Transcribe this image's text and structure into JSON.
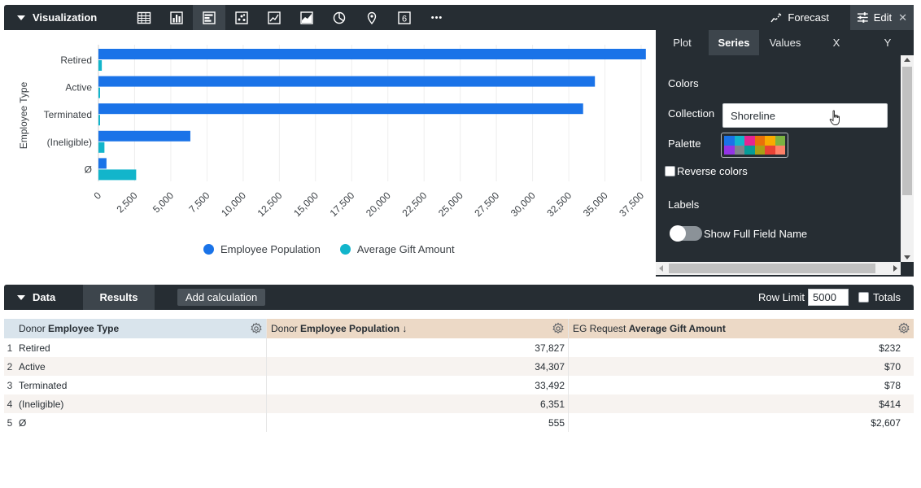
{
  "visualization": {
    "title": "Visualization",
    "icons": [
      {
        "name": "table-icon",
        "active": false
      },
      {
        "name": "column-chart-icon",
        "active": false
      },
      {
        "name": "bar-chart-icon",
        "active": true
      },
      {
        "name": "scatter-chart-icon",
        "active": false
      },
      {
        "name": "line-chart-icon",
        "active": false
      },
      {
        "name": "area-chart-icon",
        "active": false
      },
      {
        "name": "pie-chart-icon",
        "active": false
      },
      {
        "name": "map-pin-icon",
        "active": false
      },
      {
        "name": "single-value-icon",
        "active": false
      },
      {
        "name": "more-icon",
        "active": false
      }
    ],
    "single_value_glyph": "6",
    "more_glyph": "•••",
    "forecast_label": "Forecast",
    "edit_label": "Edit",
    "close_glyph": "✕"
  },
  "chart_data": {
    "type": "bar",
    "orientation": "horizontal",
    "categories": [
      "Retired",
      "Active",
      "Terminated",
      "(Ineligible)",
      "Ø"
    ],
    "series": [
      {
        "name": "Employee Population",
        "color": "#1a73e8",
        "values": [
          37827,
          34307,
          33492,
          6351,
          555
        ]
      },
      {
        "name": "Average Gift Amount",
        "color": "#12b5cb",
        "values": [
          232,
          70,
          78,
          414,
          2607
        ]
      }
    ],
    "ylabel": "Employee Type",
    "xlim": [
      0,
      37500
    ],
    "x_ticks": [
      "0",
      "2,500",
      "5,000",
      "7,500",
      "10,000",
      "12,500",
      "15,000",
      "17,500",
      "20,000",
      "22,500",
      "25,000",
      "27,500",
      "30,000",
      "32,500",
      "35,000",
      "37,500"
    ],
    "grid": true,
    "legend": "bottom"
  },
  "edit_panel": {
    "tabs": [
      {
        "label": "Plot",
        "active": false
      },
      {
        "label": "Series",
        "active": true
      },
      {
        "label": "Values",
        "active": false
      },
      {
        "label": "X",
        "active": false
      },
      {
        "label": "Y",
        "active": false
      }
    ],
    "colors_heading": "Colors",
    "collection_label": "Collection",
    "collection_value": "Shoreline",
    "palette_label": "Palette",
    "palette_colors": [
      "#1a73e8",
      "#12b5cb",
      "#e52592",
      "#e8710a",
      "#f9ab00",
      "#7cb342",
      "#9334e6",
      "#80868b",
      "#079c98",
      "#a8a116",
      "#ea4335",
      "#ff8168"
    ],
    "reverse_colors_label": "Reverse colors",
    "labels_heading": "Labels",
    "show_full_field_name_label": "Show Full Field Name"
  },
  "data_bar": {
    "title": "Data",
    "results_tab": "Results",
    "add_calculation": "Add calculation",
    "row_limit_label": "Row Limit",
    "row_limit_value": "5000",
    "totals_label": "Totals"
  },
  "table": {
    "headers": [
      {
        "prefix": "Donor ",
        "bold": "Employee Type",
        "suffix": ""
      },
      {
        "prefix": "Donor ",
        "bold": "Employee Population",
        "suffix": " ↓"
      },
      {
        "prefix": "EG Request ",
        "bold": "Average Gift Amount",
        "suffix": ""
      }
    ],
    "rows": [
      {
        "num": "1",
        "type": "Retired",
        "population": "37,827",
        "gift": "$232"
      },
      {
        "num": "2",
        "type": "Active",
        "population": "34,307",
        "gift": "$70"
      },
      {
        "num": "3",
        "type": "Terminated",
        "population": "33,492",
        "gift": "$78"
      },
      {
        "num": "4",
        "type": "(Ineligible)",
        "population": "6,351",
        "gift": "$414"
      },
      {
        "num": "5",
        "type": "Ø",
        "population": "555",
        "gift": "$2,607"
      }
    ]
  }
}
